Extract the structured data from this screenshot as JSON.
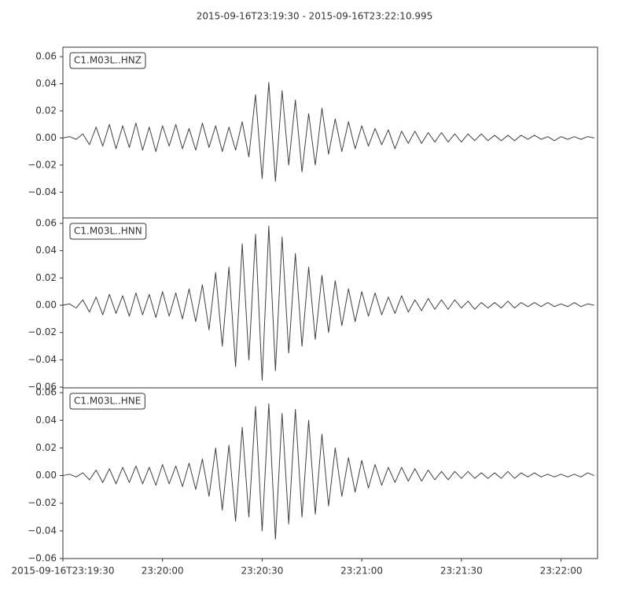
{
  "title": "2015-09-16T23:19:30  -  2015-09-16T23:22:10.995",
  "chart_data": [
    {
      "type": "line",
      "x": [
        0,
        2,
        4,
        6,
        8,
        10,
        12,
        14,
        16,
        18,
        20,
        22,
        24,
        26,
        28,
        30,
        32,
        34,
        36,
        38,
        40,
        42,
        44,
        46,
        48,
        50,
        52,
        54,
        56,
        58,
        60,
        62,
        64,
        66,
        68,
        70,
        72,
        74,
        76,
        78,
        80,
        82,
        84,
        86,
        88,
        90,
        92,
        94,
        96,
        98,
        100,
        102,
        104,
        106,
        108,
        110,
        112,
        114,
        116,
        118,
        120,
        122,
        124,
        126,
        128,
        130,
        132,
        134,
        136,
        138,
        140,
        142,
        144,
        146,
        148,
        150,
        152,
        154,
        156,
        158,
        160
      ],
      "series": [
        {
          "name": "C1.M03L..HNZ",
          "color": "#404040",
          "values": [
            0,
            0.001,
            -0.001,
            0.003,
            -0.005,
            0.008,
            -0.006,
            0.01,
            -0.008,
            0.009,
            -0.007,
            0.011,
            -0.009,
            0.008,
            -0.01,
            0.009,
            -0.006,
            0.01,
            -0.008,
            0.007,
            -0.009,
            0.011,
            -0.007,
            0.009,
            -0.01,
            0.008,
            -0.009,
            0.012,
            -0.014,
            0.032,
            -0.03,
            0.041,
            -0.032,
            0.035,
            -0.02,
            0.028,
            -0.025,
            0.018,
            -0.02,
            0.022,
            -0.012,
            0.014,
            -0.01,
            0.012,
            -0.008,
            0.009,
            -0.006,
            0.007,
            -0.005,
            0.006,
            -0.008,
            0.005,
            -0.004,
            0.005,
            -0.004,
            0.004,
            -0.003,
            0.004,
            -0.003,
            0.003,
            -0.003,
            0.003,
            -0.002,
            0.003,
            -0.002,
            0.002,
            -0.002,
            0.002,
            -0.002,
            0.002,
            -0.001,
            0.002,
            -0.001,
            0.001,
            -0.002,
            0.001,
            -0.001,
            0.001,
            -0.001,
            0.001,
            0
          ]
        }
      ],
      "xlim": [
        0,
        160.995
      ],
      "ylim": [
        -0.059,
        0.067
      ],
      "yticks": [
        {
          "value": -0.04,
          "label": "−0.04"
        },
        {
          "value": -0.02,
          "label": "−0.02"
        },
        {
          "value": 0,
          "label": "0.00"
        },
        0.02,
        0.04,
        0.06
      ]
    },
    {
      "type": "line",
      "x": [
        0,
        2,
        4,
        6,
        8,
        10,
        12,
        14,
        16,
        18,
        20,
        22,
        24,
        26,
        28,
        30,
        32,
        34,
        36,
        38,
        40,
        42,
        44,
        46,
        48,
        50,
        52,
        54,
        56,
        58,
        60,
        62,
        64,
        66,
        68,
        70,
        72,
        74,
        76,
        78,
        80,
        82,
        84,
        86,
        88,
        90,
        92,
        94,
        96,
        98,
        100,
        102,
        104,
        106,
        108,
        110,
        112,
        114,
        116,
        118,
        120,
        122,
        124,
        126,
        128,
        130,
        132,
        134,
        136,
        138,
        140,
        142,
        144,
        146,
        148,
        150,
        152,
        154,
        156,
        158,
        160
      ],
      "series": [
        {
          "name": "C1.M03L..HNN",
          "color": "#404040",
          "values": [
            0,
            0.001,
            -0.002,
            0.004,
            -0.005,
            0.006,
            -0.007,
            0.008,
            -0.006,
            0.007,
            -0.008,
            0.009,
            -0.007,
            0.008,
            -0.009,
            0.01,
            -0.008,
            0.009,
            -0.01,
            0.012,
            -0.012,
            0.015,
            -0.018,
            0.024,
            -0.03,
            0.028,
            -0.045,
            0.045,
            -0.04,
            0.052,
            -0.055,
            0.058,
            -0.048,
            0.05,
            -0.035,
            0.038,
            -0.03,
            0.028,
            -0.025,
            0.022,
            -0.02,
            0.018,
            -0.015,
            0.012,
            -0.012,
            0.01,
            -0.008,
            0.009,
            -0.007,
            0.006,
            -0.006,
            0.007,
            -0.005,
            0.004,
            -0.004,
            0.005,
            -0.003,
            0.004,
            -0.003,
            0.004,
            -0.002,
            0.003,
            -0.003,
            0.002,
            -0.002,
            0.002,
            -0.002,
            0.003,
            -0.002,
            0.002,
            -0.001,
            0.002,
            -0.001,
            0.002,
            -0.001,
            0.001,
            -0.001,
            0.002,
            -0.001,
            0.001,
            0
          ]
        }
      ],
      "xlim": [
        0,
        160.995
      ],
      "ylim": [
        -0.0605,
        0.064
      ],
      "yticks": [
        {
          "value": -0.06,
          "label": "−0.06"
        },
        {
          "value": -0.04,
          "label": "−0.04"
        },
        {
          "value": -0.02,
          "label": "−0.02"
        },
        {
          "value": 0,
          "label": "0.00"
        },
        0.02,
        0.04,
        0.06
      ]
    },
    {
      "type": "line",
      "x": [
        0,
        2,
        4,
        6,
        8,
        10,
        12,
        14,
        16,
        18,
        20,
        22,
        24,
        26,
        28,
        30,
        32,
        34,
        36,
        38,
        40,
        42,
        44,
        46,
        48,
        50,
        52,
        54,
        56,
        58,
        60,
        62,
        64,
        66,
        68,
        70,
        72,
        74,
        76,
        78,
        80,
        82,
        84,
        86,
        88,
        90,
        92,
        94,
        96,
        98,
        100,
        102,
        104,
        106,
        108,
        110,
        112,
        114,
        116,
        118,
        120,
        122,
        124,
        126,
        128,
        130,
        132,
        134,
        136,
        138,
        140,
        142,
        144,
        146,
        148,
        150,
        152,
        154,
        156,
        158,
        160
      ],
      "series": [
        {
          "name": "C1.M03L..HNE",
          "color": "#404040",
          "values": [
            0,
            0.001,
            -0.001,
            0.002,
            -0.003,
            0.004,
            -0.005,
            0.005,
            -0.006,
            0.006,
            -0.005,
            0.007,
            -0.006,
            0.006,
            -0.007,
            0.008,
            -0.006,
            0.007,
            -0.008,
            0.009,
            -0.01,
            0.012,
            -0.015,
            0.02,
            -0.025,
            0.022,
            -0.033,
            0.035,
            -0.03,
            0.05,
            -0.04,
            0.052,
            -0.046,
            0.045,
            -0.035,
            0.048,
            -0.03,
            0.04,
            -0.028,
            0.03,
            -0.022,
            0.02,
            -0.015,
            0.013,
            -0.012,
            0.011,
            -0.009,
            0.008,
            -0.007,
            0.006,
            -0.005,
            0.006,
            -0.004,
            0.005,
            -0.004,
            0.004,
            -0.003,
            0.003,
            -0.003,
            0.003,
            -0.002,
            0.003,
            -0.002,
            0.002,
            -0.002,
            0.002,
            -0.002,
            0.003,
            -0.002,
            0.002,
            -0.001,
            0.002,
            -0.001,
            0.001,
            -0.001,
            0.001,
            -0.001,
            0.001,
            -0.001,
            0.002,
            0
          ]
        }
      ],
      "xlim": [
        0,
        160.995
      ],
      "ylim": [
        -0.06,
        0.0635
      ],
      "yticks": [
        {
          "value": -0.06,
          "label": "−0.06"
        },
        {
          "value": -0.04,
          "label": "−0.04"
        },
        {
          "value": -0.02,
          "label": "−0.02"
        },
        {
          "value": 0,
          "label": "0.00"
        },
        0.02,
        0.04,
        0.06
      ],
      "xticks": [
        {
          "value": 0,
          "label": "2015-09-16T23:19:30"
        },
        {
          "value": 30,
          "label": "23:20:00"
        },
        {
          "value": 60,
          "label": "23:20:30"
        },
        {
          "value": 90,
          "label": "23:21:00"
        },
        {
          "value": 120,
          "label": "23:21:30"
        },
        {
          "value": 150,
          "label": "23:22:00"
        }
      ]
    }
  ]
}
